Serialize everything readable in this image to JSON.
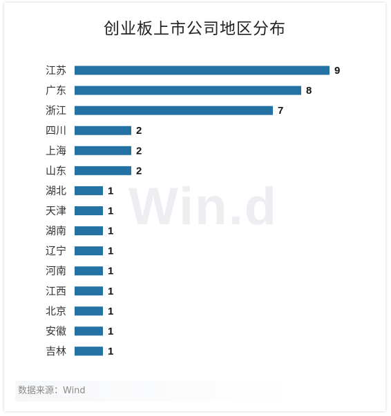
{
  "chart_data": {
    "type": "bar",
    "orientation": "horizontal",
    "title": "创业板上市公司地区分布",
    "categories": [
      "江苏",
      "广东",
      "浙江",
      "四川",
      "上海",
      "山东",
      "湖北",
      "天津",
      "湖南",
      "辽宁",
      "河南",
      "江西",
      "北京",
      "安徽",
      "吉林"
    ],
    "values": [
      9,
      8,
      7,
      2,
      2,
      2,
      1,
      1,
      1,
      1,
      1,
      1,
      1,
      1,
      1
    ],
    "xlim": [
      0,
      9
    ],
    "grid": false,
    "legend": "none",
    "bar_color": "#2472a4"
  },
  "watermark": "Win.d",
  "source": "数据来源：Wind"
}
